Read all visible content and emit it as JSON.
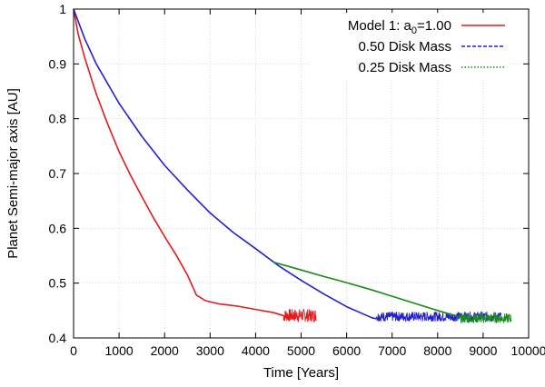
{
  "chart_data": {
    "type": "line",
    "xlabel": "Time [Years]",
    "ylabel": "Planet Semi-major axis [AU]",
    "xlim": [
      0,
      10000
    ],
    "ylim": [
      0.4,
      1.0
    ],
    "xticks": [
      0,
      1000,
      2000,
      3000,
      4000,
      5000,
      6000,
      7000,
      8000,
      9000,
      10000
    ],
    "yticks": [
      0.4,
      0.5,
      0.6,
      0.7,
      0.8,
      0.9,
      1.0
    ],
    "xtick_labels": [
      "0",
      "1000",
      "2000",
      "3000",
      "4000",
      "5000",
      "6000",
      "7000",
      "8000",
      "9000",
      "10000"
    ],
    "ytick_labels": [
      "0.4",
      "0.5",
      "0.6",
      "0.7",
      "0.8",
      "0.9",
      "1"
    ],
    "grid": true,
    "legend_position": "top-right",
    "series": [
      {
        "name": "Model 1: a0=1.00",
        "legend_prefix": "Model 1: a",
        "legend_sub": "0",
        "legend_suffix": "=1.00",
        "color": "#e41a1c",
        "dash": "solid",
        "x": [
          0,
          100,
          250,
          500,
          750,
          1000,
          1250,
          1500,
          1750,
          2000,
          2250,
          2500,
          2700,
          2900,
          3200,
          3600,
          4000,
          4400,
          4600
        ],
        "y": [
          1.0,
          0.955,
          0.91,
          0.845,
          0.79,
          0.74,
          0.697,
          0.658,
          0.62,
          0.585,
          0.552,
          0.515,
          0.478,
          0.468,
          0.462,
          0.458,
          0.452,
          0.446,
          0.441
        ],
        "noise": {
          "x_start": 4600,
          "x_end": 5330,
          "y_center": 0.441,
          "amplitude": 0.012
        }
      },
      {
        "name": "0.50 Disk Mass",
        "color": "#2020d0",
        "dash": "dashed",
        "x": [
          0,
          250,
          500,
          1000,
          1500,
          2000,
          2500,
          3000,
          3500,
          4000,
          4500,
          5000,
          5500,
          6000,
          6300,
          6550,
          6650
        ],
        "y": [
          1.0,
          0.945,
          0.9,
          0.828,
          0.768,
          0.715,
          0.67,
          0.628,
          0.593,
          0.563,
          0.532,
          0.505,
          0.48,
          0.457,
          0.446,
          0.437,
          0.435
        ],
        "noise": {
          "x_start": 6650,
          "x_end": 9400,
          "y_center": 0.439,
          "amplitude": 0.009
        }
      },
      {
        "name": "0.25 Disk Mass",
        "color": "#1a8a1a",
        "dash": "dotted",
        "x": [
          4400,
          5000,
          5500,
          6000,
          6500,
          7000,
          7500,
          8000,
          8500
        ],
        "y": [
          0.538,
          0.524,
          0.512,
          0.501,
          0.489,
          0.476,
          0.463,
          0.45,
          0.438
        ],
        "noise": {
          "x_start": 8500,
          "x_end": 9620,
          "y_center": 0.436,
          "amplitude": 0.009
        }
      }
    ]
  }
}
